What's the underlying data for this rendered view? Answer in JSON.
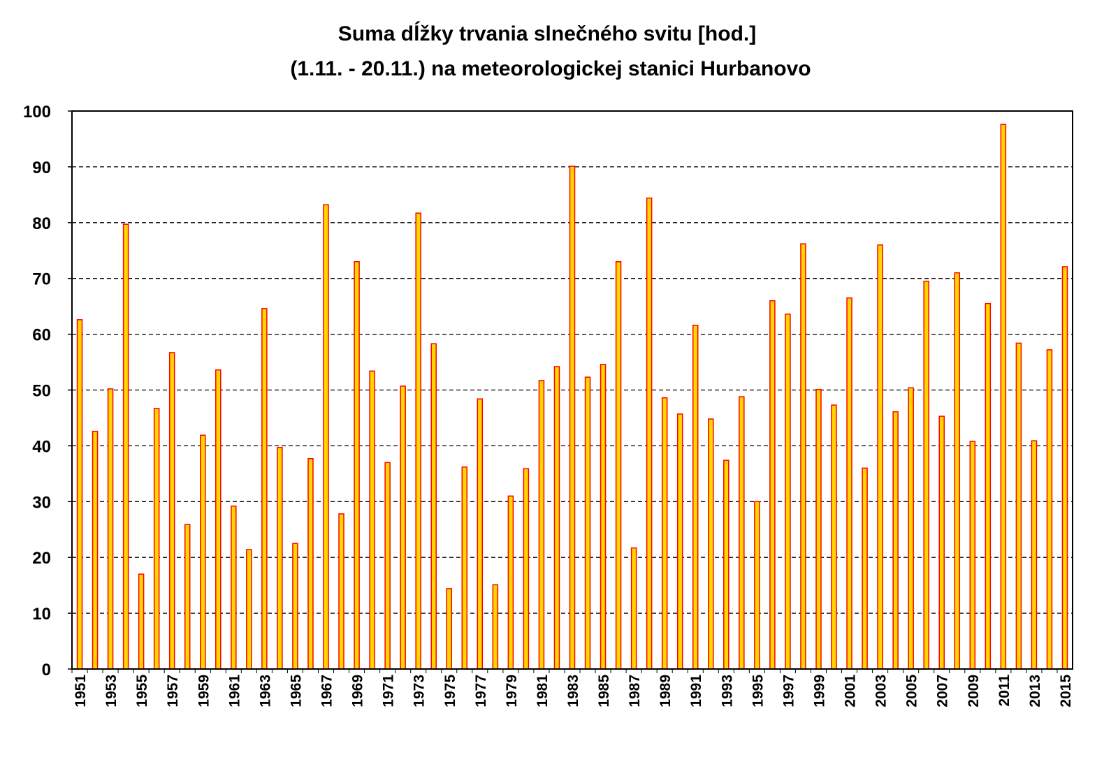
{
  "chart_data": {
    "type": "bar",
    "title": "Suma dĺžky trvania slnečného svitu [hod.]",
    "subtitle": "(1.11. - 20.11.) na meteorologickej stanici Hurbanovo",
    "xlabel": "",
    "ylabel": "",
    "ylim": [
      0,
      100
    ],
    "yticks": [
      0,
      10,
      20,
      30,
      40,
      50,
      60,
      70,
      80,
      90,
      100
    ],
    "grid": "horizontal dashed",
    "legend": "none",
    "bar_fill": "#FFD700",
    "bar_stroke": "#FF0000",
    "categories": [
      1951,
      1952,
      1953,
      1954,
      1955,
      1956,
      1957,
      1958,
      1959,
      1960,
      1961,
      1962,
      1963,
      1964,
      1965,
      1966,
      1967,
      1968,
      1969,
      1970,
      1971,
      1972,
      1973,
      1974,
      1975,
      1976,
      1977,
      1978,
      1979,
      1980,
      1981,
      1982,
      1983,
      1984,
      1985,
      1986,
      1987,
      1988,
      1989,
      1990,
      1991,
      1992,
      1993,
      1994,
      1995,
      1996,
      1997,
      1998,
      1999,
      2000,
      2001,
      2002,
      2003,
      2004,
      2005,
      2006,
      2007,
      2008,
      2009,
      2010,
      2011,
      2012,
      2013,
      2014,
      2015
    ],
    "tick_labels": [
      "1951",
      "1953",
      "1955",
      "1957",
      "1959",
      "1961",
      "1963",
      "1965",
      "1967",
      "1969",
      "1971",
      "1973",
      "1975",
      "1977",
      "1979",
      "1981",
      "1983",
      "1985",
      "1987",
      "1989",
      "1991",
      "1993",
      "1995",
      "1997",
      "1999",
      "2001",
      "2003",
      "2005",
      "2007",
      "2009",
      "2011",
      "2013",
      "2015"
    ],
    "values": [
      62.6,
      42.6,
      50.2,
      79.7,
      17.0,
      46.7,
      56.7,
      25.9,
      41.9,
      53.6,
      29.2,
      21.4,
      64.6,
      39.7,
      22.5,
      37.7,
      83.2,
      27.8,
      73.0,
      53.4,
      37.0,
      50.7,
      81.7,
      58.3,
      14.4,
      36.2,
      48.4,
      15.1,
      31.0,
      35.9,
      51.7,
      54.2,
      90.1,
      52.3,
      54.6,
      73.0,
      21.7,
      84.4,
      48.6,
      45.7,
      61.6,
      44.8,
      37.4,
      48.8,
      30.0,
      66.0,
      63.6,
      76.2,
      50.1,
      47.3,
      66.5,
      36.0,
      76.0,
      46.1,
      50.4,
      69.5,
      45.3,
      71.0,
      40.8,
      65.5,
      97.6,
      58.4,
      40.9,
      57.2,
      72.1
    ]
  }
}
